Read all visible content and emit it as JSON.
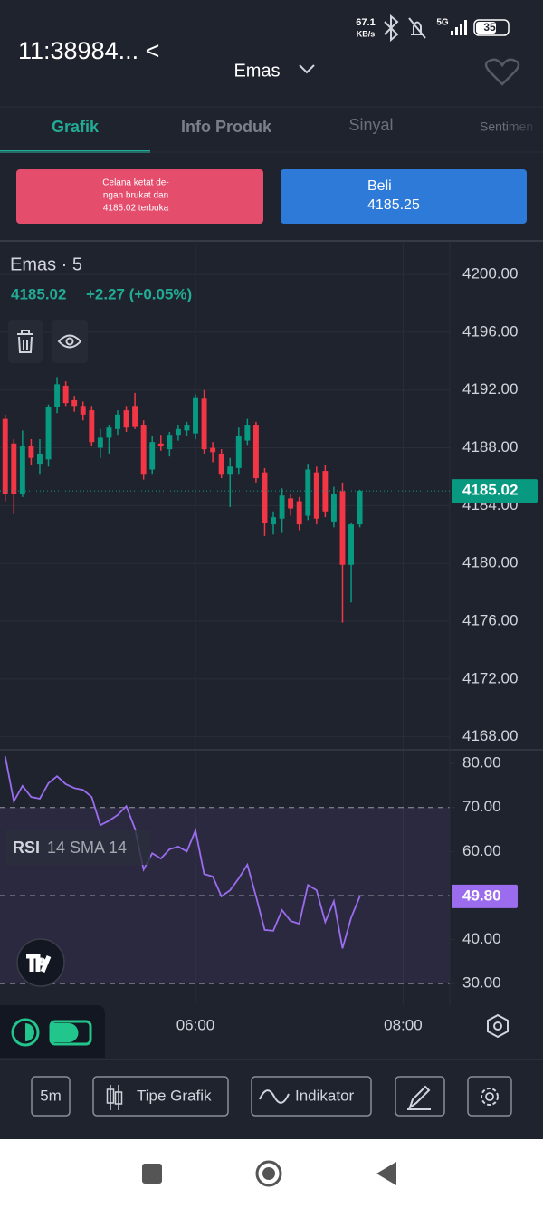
{
  "status_bar": {
    "time": "11:38984... <",
    "speed": "67.1",
    "speed_unit": "KB/s",
    "network": "5G",
    "battery": "35"
  },
  "header": {
    "title": "Emas"
  },
  "tabs": [
    "Grafik",
    "Info Produk",
    "Sinyal",
    "Sentimen"
  ],
  "sell_button": {
    "lines": [
      "Celana ketat de-",
      "ngan brukat dan",
      "4185.02 terbuka"
    ]
  },
  "buy_button": {
    "label": "Beli",
    "price": "4185.25"
  },
  "chart_data": [
    {
      "type": "candlestick",
      "title": "Emas · 5",
      "price": "4185.02",
      "change": "+2.27 (+0.05%)",
      "up_color": "#089981",
      "down_color": "#f23645",
      "x": [
        250,
        255,
        260,
        265,
        270,
        275,
        280,
        285,
        290,
        295,
        300,
        305,
        310,
        315,
        320,
        325,
        330,
        335,
        340,
        345,
        350,
        355,
        360,
        365,
        370,
        375,
        380,
        385,
        390,
        395,
        400,
        405,
        410,
        415,
        420,
        425,
        430,
        435,
        440,
        445,
        450,
        455
      ],
      "open": [
        4190.0,
        4188.3,
        4184.8,
        4188.1,
        4186.9,
        4187.2,
        4190.8,
        4192.3,
        4191.3,
        4190.9,
        4190.6,
        4188.0,
        4188.7,
        4189.3,
        4190.6,
        4190.9,
        4189.6,
        4186.5,
        4188.3,
        4187.9,
        4188.9,
        4189.2,
        4189.0,
        4191.4,
        4188.0,
        4187.6,
        4186.2,
        4186.6,
        4188.5,
        4189.6,
        4186.3,
        4182.7,
        4183.1,
        4184.5,
        4184.3,
        4183.3,
        4186.3,
        4186.4,
        4182.9,
        4185.0,
        4179.9,
        4182.7
      ],
      "high": [
        4190.3,
        4188.6,
        4189.2,
        4188.6,
        4188.6,
        4191.0,
        4192.9,
        4192.6,
        4191.6,
        4191.2,
        4190.9,
        4189.3,
        4189.6,
        4190.6,
        4190.9,
        4191.8,
        4189.9,
        4188.8,
        4188.9,
        4189.1,
        4189.6,
        4189.8,
        4191.7,
        4192.0,
        4188.4,
        4187.9,
        4187.3,
        4189.4,
        4190.0,
        4189.8,
        4186.6,
        4183.6,
        4185.2,
        4184.8,
        4184.6,
        4186.9,
        4186.7,
        4186.8,
        4185.3,
        4185.6,
        4182.8,
        4185.1
      ],
      "low": [
        4184.3,
        4183.4,
        4184.6,
        4186.8,
        4186.2,
        4186.7,
        4190.4,
        4190.9,
        4190.5,
        4189.9,
        4188.1,
        4187.3,
        4187.6,
        4188.9,
        4189.1,
        4189.3,
        4185.8,
        4186.2,
        4187.8,
        4187.4,
        4188.5,
        4188.8,
        4188.6,
        4187.6,
        4187.0,
        4185.9,
        4183.9,
        4186.2,
        4188.2,
        4185.6,
        4181.9,
        4182.0,
        4182.1,
        4183.3,
        4182.3,
        4183.0,
        4182.7,
        4183.2,
        4182.5,
        4175.9,
        4177.3,
        4182.5
      ],
      "close": [
        4184.8,
        4184.8,
        4188.1,
        4187.3,
        4187.6,
        4190.8,
        4192.4,
        4191.1,
        4190.9,
        4190.3,
        4188.4,
        4188.7,
        4189.4,
        4190.3,
        4189.4,
        4189.5,
        4186.2,
        4188.4,
        4188.1,
        4188.9,
        4189.3,
        4189.6,
        4191.5,
        4187.9,
        4187.7,
        4186.2,
        4186.7,
        4188.8,
        4189.6,
        4185.9,
        4182.8,
        4183.2,
        4184.7,
        4183.8,
        4182.7,
        4186.5,
        4183.1,
        4183.6,
        4184.8,
        4179.9,
        4182.7,
        4185.02
      ],
      "last_label": "4185.02",
      "xlim": [
        247,
        507
      ],
      "xticks": [
        {
          "value": 360,
          "label": "06:00"
        },
        {
          "value": 480,
          "label": "08:00"
        }
      ],
      "ylim": [
        4167.1,
        4202.2
      ],
      "yticks": [
        {
          "value": 4200,
          "label": "4200.00"
        },
        {
          "value": 4196,
          "label": "4196.00"
        },
        {
          "value": 4192,
          "label": "4192.00"
        },
        {
          "value": 4188,
          "label": "4188.00"
        },
        {
          "value": 4184,
          "label": "4184.00"
        },
        {
          "value": 4180,
          "label": "4180.00"
        },
        {
          "value": 4176,
          "label": "4176.00"
        },
        {
          "value": 4172,
          "label": "4172.00"
        },
        {
          "value": 4168,
          "label": "4168.00"
        }
      ],
      "grid": true
    },
    {
      "type": "line",
      "title": "RSI",
      "subtitle": "14 SMA 14",
      "color": "#9b6dee",
      "x": [
        250,
        255,
        260,
        265,
        270,
        275,
        280,
        285,
        290,
        295,
        300,
        305,
        310,
        315,
        320,
        325,
        330,
        335,
        340,
        345,
        350,
        355,
        360,
        365,
        370,
        375,
        380,
        385,
        390,
        395,
        400,
        405,
        410,
        415,
        420,
        425,
        430,
        435,
        440,
        445,
        450,
        455
      ],
      "values": [
        81.6,
        71.4,
        74.9,
        72.4,
        72.0,
        75.5,
        77.1,
        75.3,
        74.4,
        74.0,
        72.4,
        66.0,
        67.0,
        68.3,
        70.3,
        65.2,
        55.9,
        59.6,
        58.4,
        60.5,
        61.1,
        60.0,
        64.8,
        54.9,
        54.3,
        49.8,
        51.2,
        53.9,
        57.0,
        49.8,
        42.2,
        42.0,
        46.7,
        44.2,
        43.6,
        52.4,
        51.2,
        44.0,
        48.7,
        38.0,
        45.0,
        49.8
      ],
      "last_label": "49.80",
      "band": [
        30,
        70
      ],
      "reference_lines": [
        70,
        50,
        30
      ],
      "ylim": [
        25.1,
        82.9
      ],
      "yticks": [
        {
          "value": 80,
          "label": "80.00"
        },
        {
          "value": 70,
          "label": "70.00"
        },
        {
          "value": 60,
          "label": "60.00"
        },
        {
          "value": 50,
          "label": "50.00"
        },
        {
          "value": 40,
          "label": "40.00"
        },
        {
          "value": 30,
          "label": "30.00"
        }
      ]
    }
  ],
  "toolbar": [
    "5m",
    "Tipe Grafik",
    "Indikator"
  ]
}
